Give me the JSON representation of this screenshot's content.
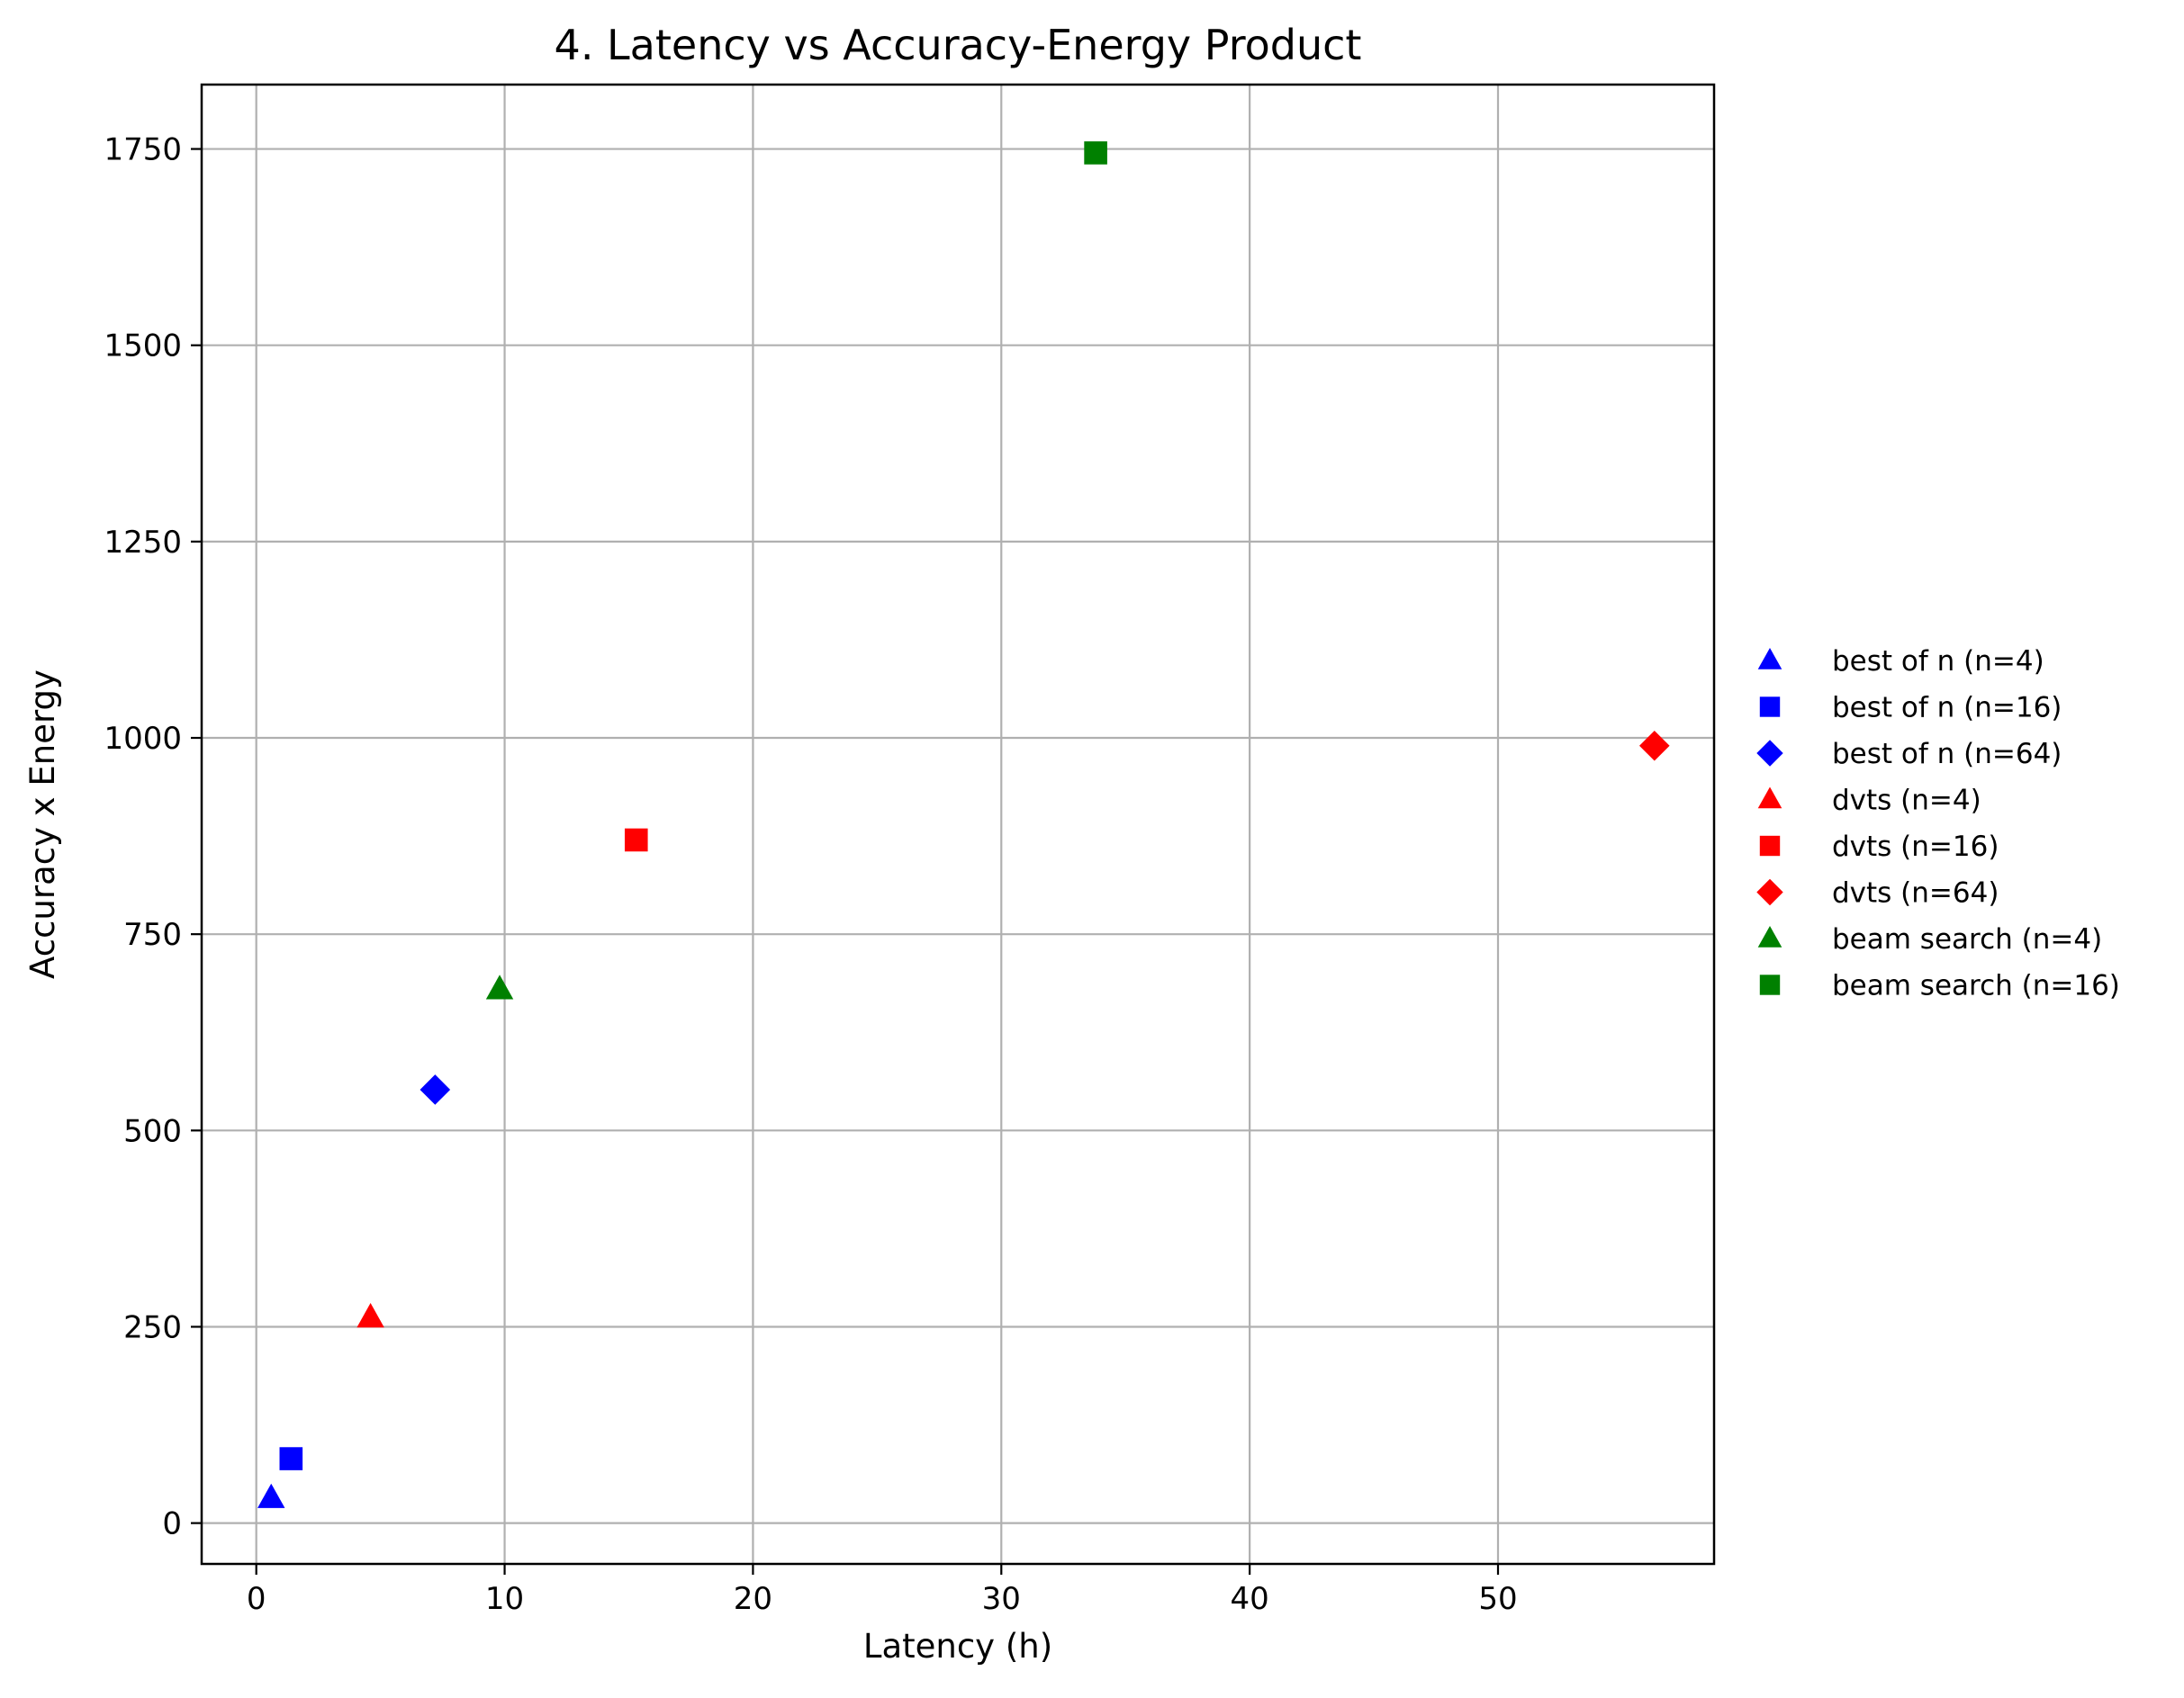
{
  "chart_data": {
    "type": "scatter",
    "title": "4. Latency vs Accuracy-Energy Product",
    "xlabel": "Latency (h)",
    "ylabel": "Accuracy x Energy",
    "xlim": [
      -2.2,
      58.7
    ],
    "ylim": [
      -52,
      1832
    ],
    "xticks": [
      0,
      10,
      20,
      30,
      40,
      50
    ],
    "yticks": [
      0,
      250,
      500,
      750,
      1000,
      1250,
      1500,
      1750
    ],
    "grid": true,
    "legend_position": "right",
    "series": [
      {
        "name": "best of n (n=4)",
        "color": "#0000ff",
        "marker": "triangle",
        "x": 0.6,
        "y": 32
      },
      {
        "name": "best of n (n=16)",
        "color": "#0000ff",
        "marker": "square",
        "x": 1.4,
        "y": 82
      },
      {
        "name": "best of n (n=64)",
        "color": "#0000ff",
        "marker": "diamond",
        "x": 7.2,
        "y": 552
      },
      {
        "name": "dvts (n=4)",
        "color": "#ff0000",
        "marker": "triangle",
        "x": 4.6,
        "y": 262
      },
      {
        "name": "dvts (n=16)",
        "color": "#ff0000",
        "marker": "square",
        "x": 15.3,
        "y": 870
      },
      {
        "name": "dvts (n=64)",
        "color": "#ff0000",
        "marker": "diamond",
        "x": 56.3,
        "y": 990
      },
      {
        "name": "beam search (n=4)",
        "color": "#008000",
        "marker": "triangle",
        "x": 9.8,
        "y": 680
      },
      {
        "name": "beam search (n=16)",
        "color": "#008000",
        "marker": "square",
        "x": 33.8,
        "y": 1745
      }
    ]
  }
}
